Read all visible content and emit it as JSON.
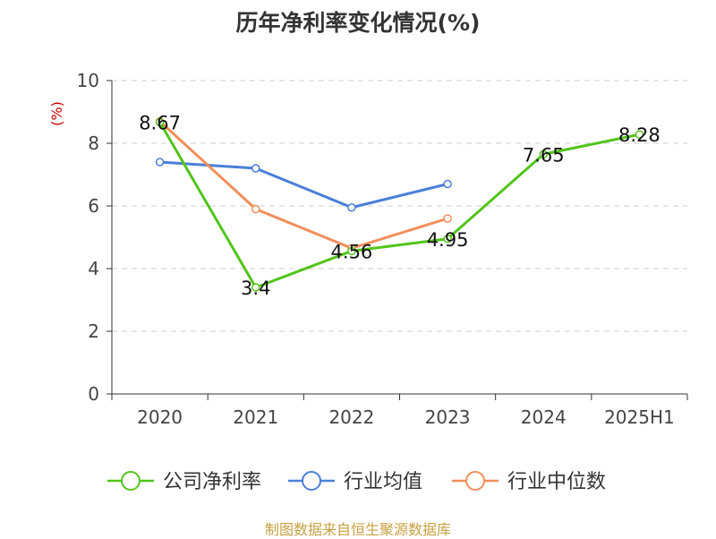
{
  "title": "历年净利率变化情况(%)",
  "source": "制图数据来自恒生聚源数据库",
  "chart_data": {
    "type": "line",
    "title": "历年净利率变化情况(%)",
    "ylabel": "(%)",
    "ylim": [
      0,
      10
    ],
    "yticks": [
      0,
      2,
      4,
      6,
      8,
      10
    ],
    "categories": [
      "2020",
      "2021",
      "2022",
      "2023",
      "2024",
      "2025H1"
    ],
    "grid": true,
    "legend_position": "bottom",
    "series": [
      {
        "name": "公司净利率",
        "color": "#52c41a",
        "values": [
          8.67,
          3.4,
          4.56,
          4.95,
          7.65,
          8.28
        ],
        "labels": [
          "8.67",
          "3.4",
          "4.56",
          "4.95",
          "7.65",
          "8.28"
        ]
      },
      {
        "name": "行业均值",
        "color": "#4a7fd8",
        "values": [
          7.4,
          7.2,
          5.95,
          6.7,
          null,
          null
        ]
      },
      {
        "name": "行业中位数",
        "color": "#f28e5a",
        "values": [
          8.7,
          5.9,
          4.65,
          5.6,
          null,
          null
        ]
      }
    ]
  },
  "colors": {
    "ylabel": "#cc0000",
    "grid": "#cccccc",
    "axis": "#333333",
    "source": "#c8a040"
  }
}
